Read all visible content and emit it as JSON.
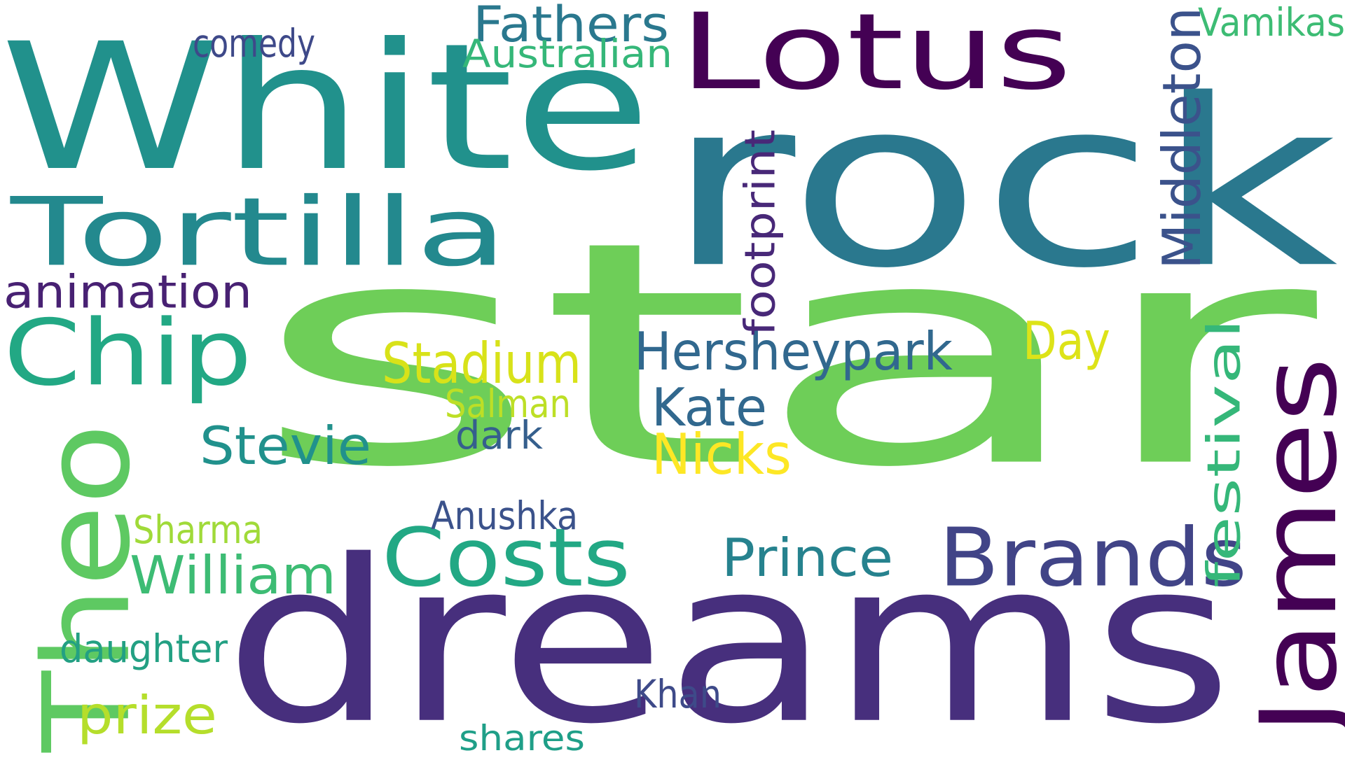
{
  "words": [
    {
      "text": "star",
      "color": "#6ece58"
    },
    {
      "text": "dreams",
      "color": "#472f7d"
    },
    {
      "text": "rock",
      "color": "#2a788e"
    },
    {
      "text": "White",
      "color": "#21918c"
    },
    {
      "text": "Lotus",
      "color": "#440154"
    },
    {
      "text": "James",
      "color": "#440154"
    },
    {
      "text": "Tortilla",
      "color": "#23898e"
    },
    {
      "text": "Theo",
      "color": "#5ec962"
    },
    {
      "text": "Chip",
      "color": "#22a884"
    },
    {
      "text": "Costs",
      "color": "#22a884"
    },
    {
      "text": "Brands",
      "color": "#414487"
    },
    {
      "text": "Middleton",
      "color": "#3b528b"
    },
    {
      "text": "Hersheypark",
      "color": "#31688e"
    },
    {
      "text": "Stadium",
      "color": "#d8e219"
    },
    {
      "text": "Fathers",
      "color": "#2a788e"
    },
    {
      "text": "animation",
      "color": "#482173"
    },
    {
      "text": "festival",
      "color": "#35b779"
    },
    {
      "text": "Kate",
      "color": "#31688e"
    },
    {
      "text": "Nicks",
      "color": "#fde725"
    },
    {
      "text": "Stevie",
      "color": "#21918c"
    },
    {
      "text": "Prince",
      "color": "#26828e"
    },
    {
      "text": "William",
      "color": "#3dbc74"
    },
    {
      "text": "Day",
      "color": "#dde318"
    },
    {
      "text": "prize",
      "color": "#b5de2b"
    },
    {
      "text": "footprint",
      "color": "#482878"
    },
    {
      "text": "comedy",
      "color": "#3e4989"
    },
    {
      "text": "Australian",
      "color": "#35b779"
    },
    {
      "text": "Vamikas",
      "color": "#3dbc74"
    },
    {
      "text": "Salman",
      "color": "#bddf26"
    },
    {
      "text": "Anushka",
      "color": "#3b528b"
    },
    {
      "text": "Sharma",
      "color": "#a0da39"
    },
    {
      "text": "daughter",
      "color": "#23a083"
    },
    {
      "text": "Khan",
      "color": "#3e4a89"
    },
    {
      "text": "dark",
      "color": "#355f8d"
    },
    {
      "text": "shares",
      "color": "#1f9f88"
    }
  ]
}
